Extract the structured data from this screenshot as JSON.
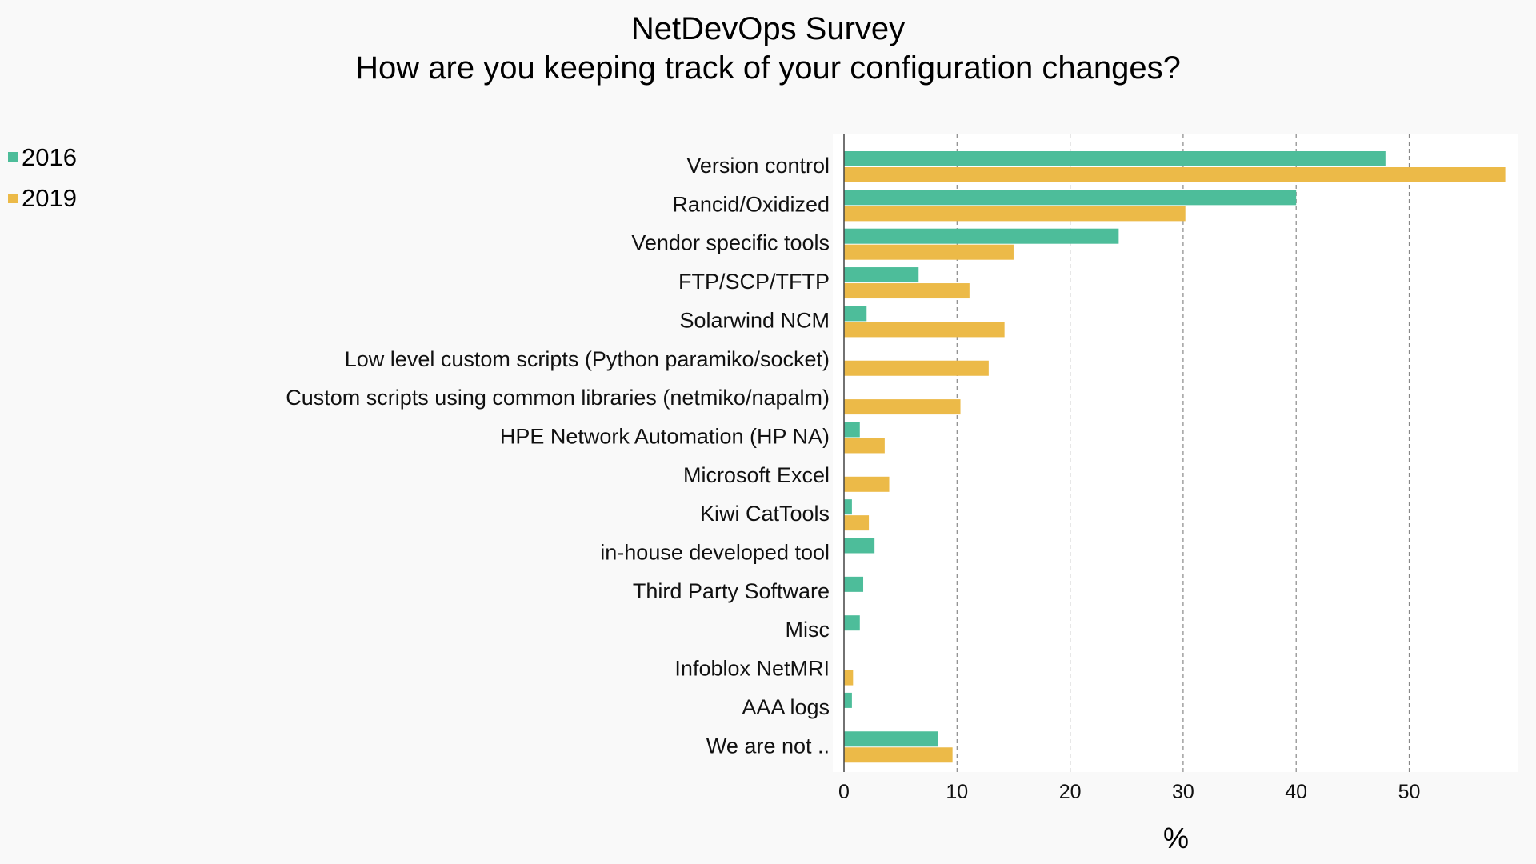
{
  "colors": {
    "s2016": "#4dbd9a",
    "s2019": "#ecba48",
    "plot_bg": "#ffffff",
    "page_bg": "#f9f9f9",
    "grid": "#888888"
  },
  "chart_data": {
    "type": "bar",
    "orientation": "horizontal",
    "title": "NetDevOps Survey",
    "subtitle": "How are you keeping track of your configuration changes?",
    "xlabel": "%",
    "ylabel": "",
    "xlim": [
      0,
      58.5
    ],
    "xticks": [
      0,
      10,
      20,
      30,
      40,
      50
    ],
    "grid": "vertical dashed",
    "legend_position": "top-left",
    "categories": [
      "Version control",
      "Rancid/Oxidized",
      "Vendor specific tools",
      "FTP/SCP/TFTP",
      "Solarwind NCM",
      "Low level custom scripts (Python paramiko/socket)",
      "Custom scripts using common libraries (netmiko/napalm)",
      "HPE Network Automation (HP NA)",
      "Microsoft Excel",
      "Kiwi CatTools",
      "in-house developed tool",
      "Third Party Software",
      "Misc",
      "Infoblox NetMRI",
      "AAA logs",
      "We are not .."
    ],
    "series": [
      {
        "name": "2016",
        "color": "#4dbd9a",
        "values": [
          47.9,
          40.0,
          24.3,
          6.6,
          2.0,
          0.0,
          0.0,
          1.4,
          0.0,
          0.7,
          2.7,
          1.7,
          1.4,
          0.0,
          0.7,
          8.3
        ]
      },
      {
        "name": "2019",
        "color": "#ecba48",
        "values": [
          58.5,
          30.2,
          15.0,
          11.1,
          14.2,
          12.8,
          10.3,
          3.6,
          4.0,
          2.2,
          0.0,
          0.0,
          0.0,
          0.8,
          0.0,
          9.6
        ]
      }
    ]
  }
}
